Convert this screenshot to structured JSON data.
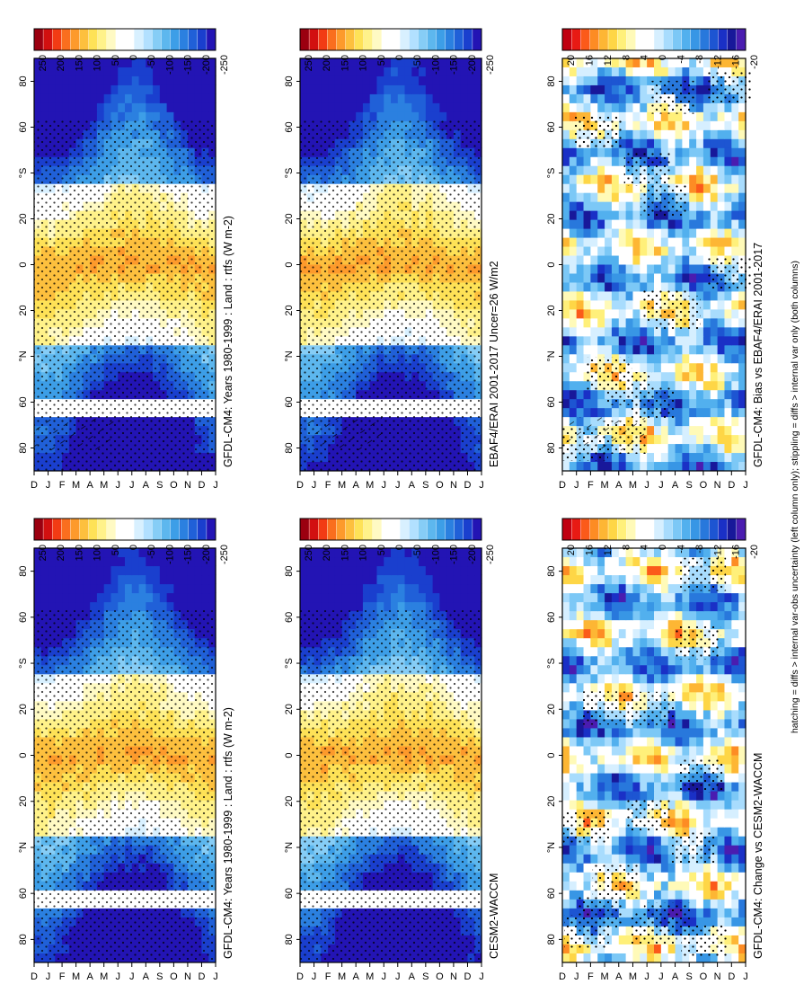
{
  "footnote": "hatching = diffs > internal var-obs uncertainty (left column only); stippling = diffs > internal var only (both columns)",
  "colors": {
    "abs_scale": [
      "#9b0010",
      "#d21010",
      "#f23b14",
      "#fa6e1e",
      "#fd9a2c",
      "#fdc03e",
      "#fee257",
      "#fff28a",
      "#fffac4",
      "#ffffff",
      "#ffffff",
      "#d8f0ff",
      "#b2e0ff",
      "#86cdf6",
      "#5db7ee",
      "#3d9ee7",
      "#2b80e0",
      "#2060d8",
      "#1a3fce",
      "#2314b4"
    ],
    "diff_scale": [
      "#c00010",
      "#e81a14",
      "#fb5a1a",
      "#fd8c24",
      "#fdb634",
      "#fed646",
      "#fff07a",
      "#fffab8",
      "#ffffff",
      "#ffffff",
      "#d6efff",
      "#a8dcfd",
      "#7cc8f6",
      "#52b0ee",
      "#3896e5",
      "#2878dc",
      "#1d55d2",
      "#1a30c6",
      "#18189a",
      "#4a1cb0"
    ],
    "grey": "#ffffff"
  },
  "chart_data": [
    {
      "panel": "top-left",
      "type": "heatmap",
      "title": "GFDL-CM4: Years 1980-1999 : Land : rtfs (W m-2)",
      "x_tick_labels": [
        "D",
        "J",
        "F",
        "M",
        "A",
        "M",
        "J",
        "J",
        "A",
        "S",
        "O",
        "N",
        "D",
        "J"
      ],
      "y_tick_labels": [
        "80",
        "60",
        "°N",
        "20",
        "0",
        "20",
        "°S",
        "60",
        "80"
      ],
      "colorbar_labels": [
        "250",
        "200",
        "150",
        "100",
        "50",
        "0",
        "-50",
        "-100",
        "-150",
        "-200",
        "-250"
      ],
      "cmap": "abs",
      "seed": 3,
      "hatch": true,
      "stipple": "broad"
    },
    {
      "panel": "top-right",
      "type": "heatmap",
      "title": "GFDL-CM4: Years 1980-1999 : Land : rtfs (W m-2)",
      "x_tick_labels": [
        "D",
        "J",
        "F",
        "M",
        "A",
        "M",
        "J",
        "J",
        "A",
        "S",
        "O",
        "N",
        "D",
        "J"
      ],
      "y_tick_labels": [
        "80",
        "60",
        "°N",
        "20",
        "0",
        "20",
        "°S",
        "60",
        "80"
      ],
      "colorbar_labels": [
        "250",
        "200",
        "150",
        "100",
        "50",
        "0",
        "-50",
        "-100",
        "-150",
        "-200",
        "-250"
      ],
      "cmap": "abs",
      "seed": 5,
      "hatch": false,
      "stipple": "broad"
    },
    {
      "panel": "middle-left",
      "type": "heatmap",
      "title": "EBAF4/ERAI 2001-2017 Uncer=26 W/m2",
      "x_tick_labels": [
        "D",
        "J",
        "F",
        "M",
        "A",
        "M",
        "J",
        "J",
        "A",
        "S",
        "O",
        "N",
        "D",
        "J"
      ],
      "y_tick_labels": [
        "80",
        "60",
        "°N",
        "20",
        "0",
        "20",
        "°S",
        "60",
        "80"
      ],
      "colorbar_labels": [
        "250",
        "200",
        "150",
        "100",
        "50",
        "0",
        "-50",
        "-100",
        "-150",
        "-200",
        "-250"
      ],
      "cmap": "abs",
      "seed": 7,
      "hatch": true,
      "stipple": "broad"
    },
    {
      "panel": "middle-right",
      "type": "heatmap",
      "title": "CESM2-WACCM",
      "x_tick_labels": [
        "D",
        "J",
        "F",
        "M",
        "A",
        "M",
        "J",
        "J",
        "A",
        "S",
        "O",
        "N",
        "D",
        "J"
      ],
      "y_tick_labels": [
        "80",
        "60",
        "°N",
        "20",
        "0",
        "20",
        "°S",
        "60",
        "80"
      ],
      "colorbar_labels": [
        "250",
        "200",
        "150",
        "100",
        "50",
        "0",
        "-50",
        "-100",
        "-150",
        "-200",
        "-250"
      ],
      "cmap": "abs",
      "seed": 9,
      "hatch": false,
      "stipple": "broad"
    },
    {
      "panel": "bottom-left",
      "type": "heatmap",
      "title": "GFDL-CM4: Bias vs EBAF4/ERAI 2001-2017",
      "x_tick_labels": [
        "D",
        "J",
        "F",
        "M",
        "A",
        "M",
        "J",
        "J",
        "A",
        "S",
        "O",
        "N",
        "D",
        "J"
      ],
      "y_tick_labels": [
        "80",
        "60",
        "°N",
        "20",
        "0",
        "20",
        "°S",
        "60",
        "80"
      ],
      "colorbar_labels": [
        "20",
        "16",
        "12",
        "8",
        "4",
        "0",
        "-4",
        "-8",
        "-12",
        "-16",
        "-20"
      ],
      "cmap": "diff",
      "seed": 11,
      "hatch": true,
      "stipple": "patchy"
    },
    {
      "panel": "bottom-right",
      "type": "heatmap",
      "title": "GFDL-CM4: Change vs CESM2-WACCM",
      "x_tick_labels": [
        "D",
        "J",
        "F",
        "M",
        "A",
        "M",
        "J",
        "J",
        "A",
        "S",
        "O",
        "N",
        "D",
        "J"
      ],
      "y_tick_labels": [
        "80",
        "60",
        "°N",
        "20",
        "0",
        "20",
        "°S",
        "60",
        "80"
      ],
      "colorbar_labels": [
        "20",
        "16",
        "12",
        "8",
        "4",
        "0",
        "-4",
        "-8",
        "-12",
        "-16",
        "-20"
      ],
      "cmap": "diff",
      "seed": 13,
      "hatch": false,
      "stipple": "patchy"
    }
  ]
}
